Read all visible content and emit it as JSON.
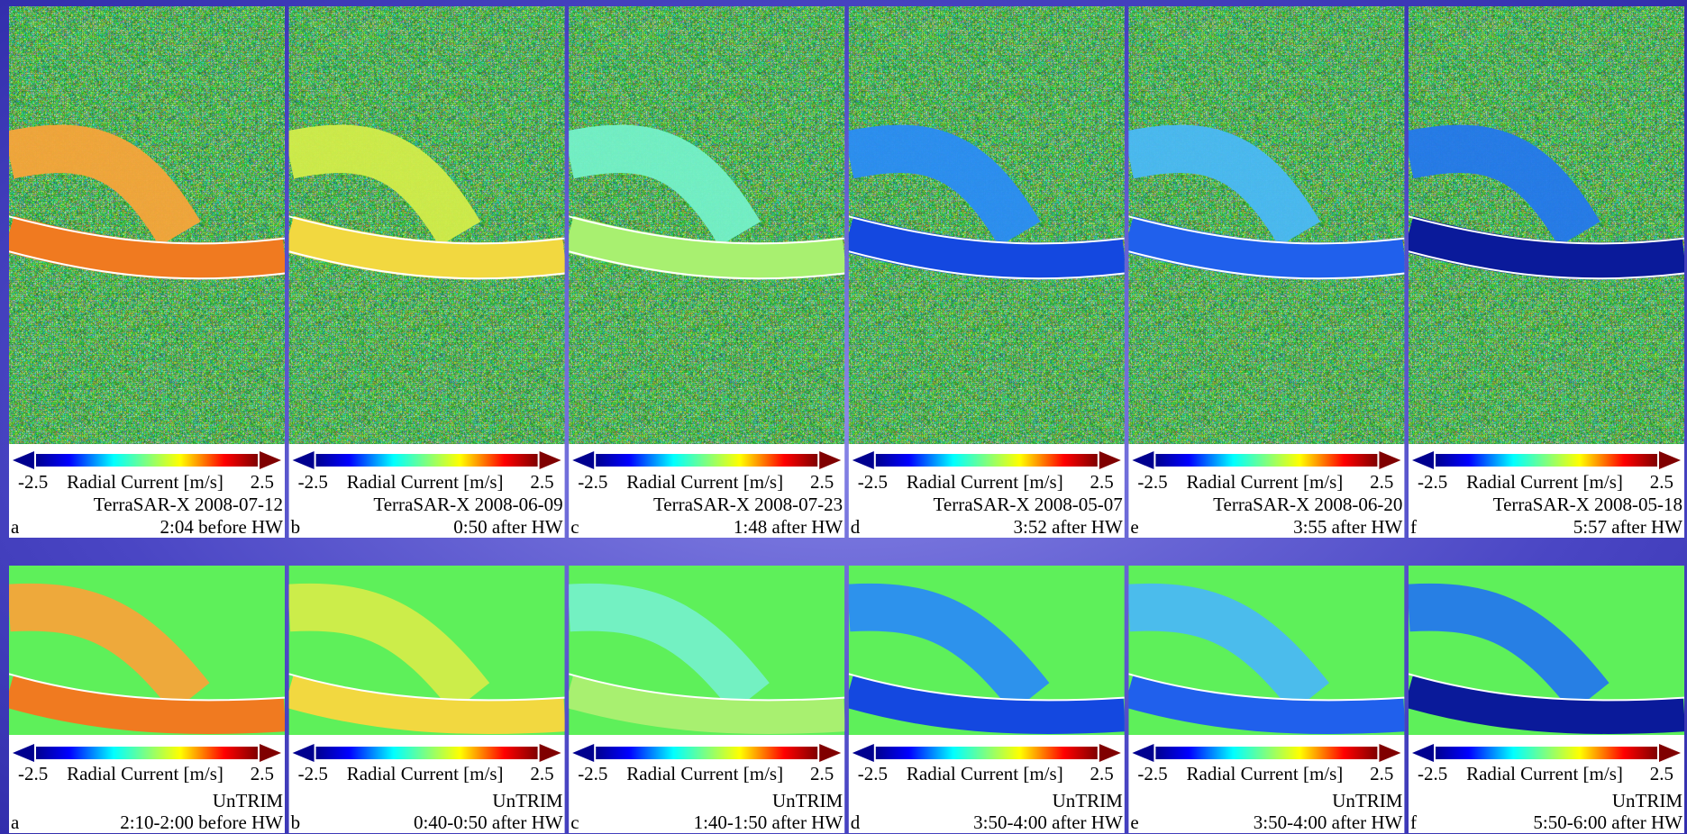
{
  "rows": [
    {
      "panels": [
        {
          "letter": "a",
          "source": "TerraSAR-X 2008-07-12",
          "time": "2:04 before HW",
          "scale_min": "-2.5",
          "scale_label": "Radial Current [m/s]",
          "scale_max": "2.5"
        },
        {
          "letter": "b",
          "source": "TerraSAR-X 2008-06-09",
          "time": "0:50 after HW",
          "scale_min": "-2.5",
          "scale_label": "Radial Current [m/s]",
          "scale_max": "2.5"
        },
        {
          "letter": "c",
          "source": "TerraSAR-X 2008-07-23",
          "time": "1:48 after HW",
          "scale_min": "-2.5",
          "scale_label": "Radial Current [m/s]",
          "scale_max": "2.5"
        },
        {
          "letter": "d",
          "source": "TerraSAR-X 2008-05-07",
          "time": "3:52 after HW",
          "scale_min": "-2.5",
          "scale_label": "Radial Current [m/s]",
          "scale_max": "2.5"
        },
        {
          "letter": "e",
          "source": "TerraSAR-X 2008-06-20",
          "time": "3:55 after HW",
          "scale_min": "-2.5",
          "scale_label": "Radial Current [m/s]",
          "scale_max": "2.5"
        },
        {
          "letter": "f",
          "source": "TerraSAR-X 2008-05-18",
          "time": "5:57 after HW",
          "scale_min": "-2.5",
          "scale_label": "Radial Current [m/s]",
          "scale_max": "2.5"
        }
      ]
    },
    {
      "panels": [
        {
          "letter": "a",
          "source": "UnTRIM",
          "time": "2:10-2:00 before HW",
          "scale_min": "-2.5",
          "scale_label": "Radial Current [m/s]",
          "scale_max": "2.5"
        },
        {
          "letter": "b",
          "source": "UnTRIM",
          "time": "0:40-0:50 after HW",
          "scale_min": "-2.5",
          "scale_label": "Radial Current [m/s]",
          "scale_max": "2.5"
        },
        {
          "letter": "c",
          "source": "UnTRIM",
          "time": "1:40-1:50 after HW",
          "scale_min": "-2.5",
          "scale_label": "Radial Current [m/s]",
          "scale_max": "2.5"
        },
        {
          "letter": "d",
          "source": "UnTRIM",
          "time": "3:50-4:00 after HW",
          "scale_min": "-2.5",
          "scale_label": "Radial Current [m/s]",
          "scale_max": "2.5"
        },
        {
          "letter": "e",
          "source": "UnTRIM",
          "time": "3:50-4:00 after HW",
          "scale_min": "-2.5",
          "scale_label": "Radial Current [m/s]",
          "scale_max": "2.5"
        },
        {
          "letter": "f",
          "source": "UnTRIM",
          "time": "5:50-6:00 after HW",
          "scale_min": "-2.5",
          "scale_label": "Radial Current [m/s]",
          "scale_max": "2.5"
        }
      ]
    }
  ]
}
